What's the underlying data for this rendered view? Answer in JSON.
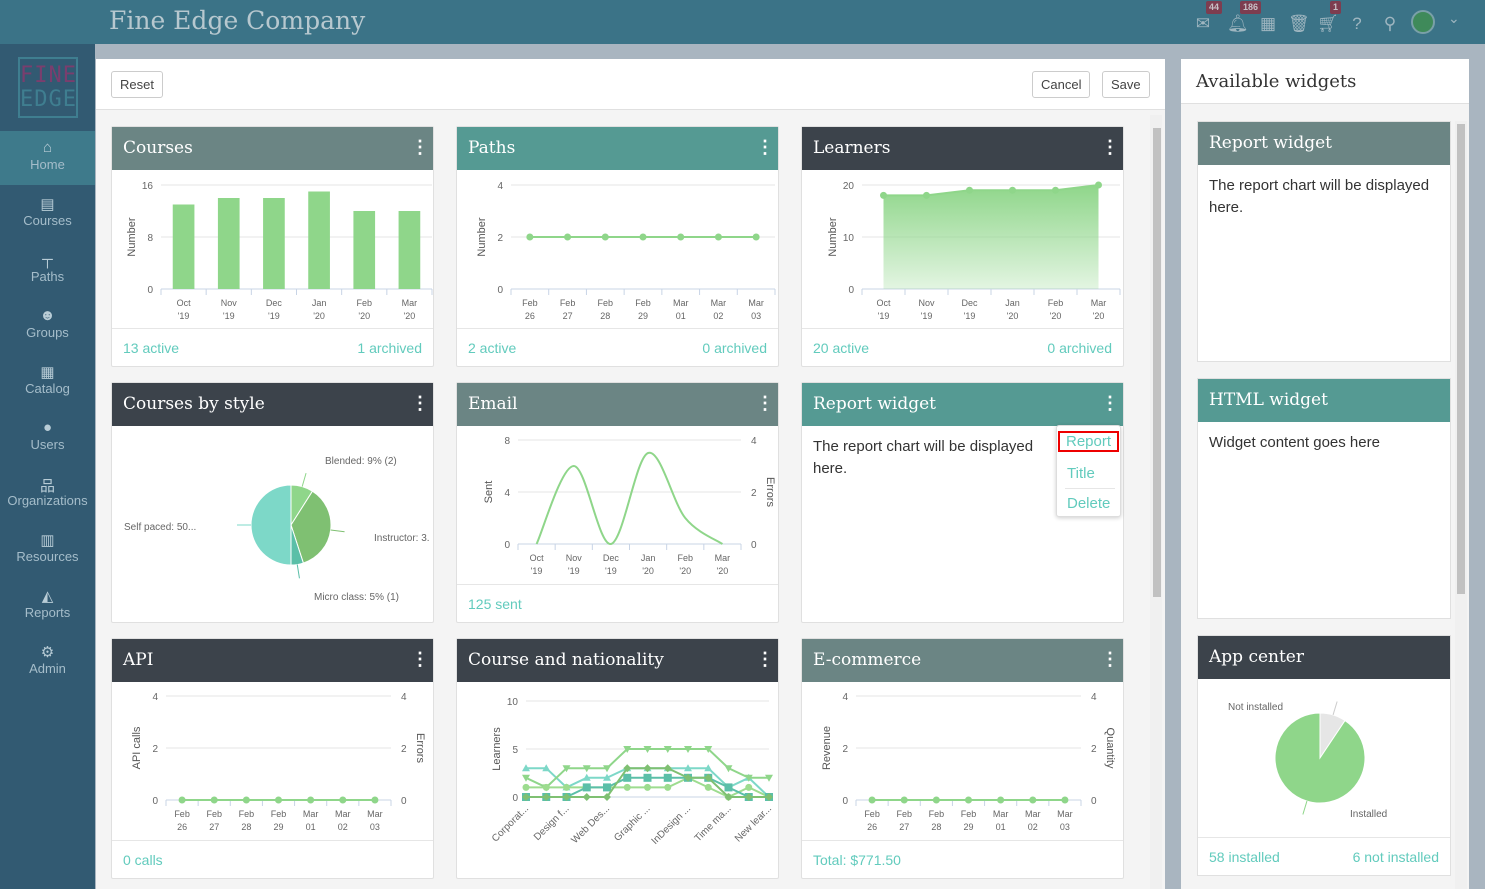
{
  "header": {
    "title": "Fine Edge Company",
    "icons": [
      {
        "name": "envelope-icon",
        "glyph": "✉",
        "badge": "44"
      },
      {
        "name": "bell-icon",
        "glyph": "🔔︎",
        "badge": "186"
      },
      {
        "name": "calendar-icon",
        "glyph": "▦",
        "badge": null
      },
      {
        "name": "trash-icon",
        "glyph": "🗑︎",
        "badge": null
      },
      {
        "name": "cart-icon",
        "glyph": "🛒︎",
        "badge": "1"
      },
      {
        "name": "help-icon",
        "glyph": "?",
        "badge": null
      },
      {
        "name": "search-icon",
        "glyph": "⚲",
        "badge": null
      }
    ]
  },
  "logo": {
    "line1": "FINE",
    "line2": "EDGE"
  },
  "sidebar": {
    "items": [
      {
        "label": "Home",
        "icon": "⌂",
        "active": true
      },
      {
        "label": "Courses",
        "icon": "▤"
      },
      {
        "label": "Paths",
        "icon": "┬"
      },
      {
        "label": "Groups",
        "icon": "☻"
      },
      {
        "label": "Catalog",
        "icon": "▦"
      },
      {
        "label": "Users",
        "icon": "●"
      },
      {
        "label": "Organizations",
        "icon": "品"
      },
      {
        "label": "Resources",
        "icon": "▥"
      },
      {
        "label": "Reports",
        "icon": "◭"
      },
      {
        "label": "Admin",
        "icon": "⚙"
      }
    ]
  },
  "toolbar": {
    "reset": "Reset",
    "cancel": "Cancel",
    "save": "Save"
  },
  "cards": [
    {
      "title": "Courses",
      "color": "#6b8584",
      "footer_left": "13 active",
      "footer_right": "1 archived"
    },
    {
      "title": "Paths",
      "color": "#559a93",
      "footer_left": "2 active",
      "footer_right": "0 archived"
    },
    {
      "title": "Learners",
      "color": "#3c434b",
      "footer_left": "20 active",
      "footer_right": "0 archived"
    },
    {
      "title": "Courses by style",
      "color": "#3c434b"
    },
    {
      "title": "Email",
      "color": "#6b8584",
      "footer_left": "125 sent"
    },
    {
      "title": "Report widget",
      "color": "#559a93",
      "text": "The report chart will be displayed here."
    },
    {
      "title": "API",
      "color": "#3c434b",
      "footer_left": "0 calls"
    },
    {
      "title": "Course and nationality",
      "color": "#3c434b"
    },
    {
      "title": "E-commerce",
      "color": "#6b8584",
      "footer_left": "Total: $771.50"
    }
  ],
  "popup_menu": {
    "items": [
      "Report",
      "Title",
      "Delete"
    ],
    "highlighted": "Report"
  },
  "available_widgets": {
    "title": "Available widgets",
    "widgets": [
      {
        "title": "Report widget",
        "color": "#6b8584",
        "text": "The report chart will be displayed here."
      },
      {
        "title": "HTML widget",
        "color": "#559a93",
        "text": "Widget content goes here"
      },
      {
        "title": "App center",
        "color": "#3c434b",
        "footer_left": "58 installed",
        "footer_right": "6 not installed"
      }
    ]
  },
  "chart_data": [
    {
      "id": "courses",
      "type": "bar",
      "ylabel": "Number",
      "yticks": [
        0,
        8,
        16
      ],
      "ylim": [
        0,
        16
      ],
      "categories": [
        "Oct '19",
        "Nov '19",
        "Dec '19",
        "Jan '20",
        "Feb '20",
        "Mar '20"
      ],
      "series": [
        {
          "values": [
            13,
            14,
            14,
            15,
            12,
            12
          ],
          "color": "#8fd68a"
        }
      ]
    },
    {
      "id": "paths",
      "type": "line",
      "ylabel": "Number",
      "yticks": [
        0,
        2,
        4
      ],
      "ylim": [
        0,
        4
      ],
      "categories": [
        "Feb 26",
        "Feb 27",
        "Feb 28",
        "Feb 29",
        "Mar 01",
        "Mar 02",
        "Mar 03"
      ],
      "series": [
        {
          "values": [
            2,
            2,
            2,
            2,
            2,
            2,
            2
          ],
          "color": "#8fd68a"
        }
      ]
    },
    {
      "id": "learners",
      "type": "area",
      "ylabel": "Number",
      "yticks": [
        0,
        10,
        20
      ],
      "ylim": [
        0,
        20
      ],
      "categories": [
        "Oct '19",
        "Nov '19",
        "Dec '19",
        "Jan '20",
        "Feb '20",
        "Mar '20"
      ],
      "series": [
        {
          "values": [
            18,
            18,
            19,
            19,
            19,
            20
          ],
          "color": "#8fd68a"
        }
      ]
    },
    {
      "id": "courses-by-style",
      "type": "pie",
      "slices": [
        {
          "label": "Blended: 9% (2)",
          "value": 9,
          "color": "#8fd68a"
        },
        {
          "label": "Instructor: 3.",
          "value": 36,
          "color": "#7fc072"
        },
        {
          "label": "Micro class: 5% (1)",
          "value": 5,
          "color": "#5bbfa8"
        },
        {
          "label": "Self paced: 50...",
          "value": 50,
          "color": "#7dd8c8"
        }
      ]
    },
    {
      "id": "email",
      "type": "spline",
      "ylabel": "Sent",
      "y2label": "Errors",
      "yticks": [
        0,
        4,
        8
      ],
      "y2ticks": [
        0,
        2,
        4
      ],
      "ylim": [
        0,
        8
      ],
      "categories": [
        "Oct '19",
        "Nov '19",
        "Dec '19",
        "Jan '20",
        "Feb '20",
        "Mar '20"
      ],
      "series": [
        {
          "values": [
            0,
            6,
            0,
            7,
            2,
            0
          ],
          "color": "#8fd68a"
        }
      ]
    },
    {
      "id": "api",
      "type": "line",
      "ylabel": "API calls",
      "y2label": "Errors",
      "yticks": [
        0,
        2,
        4
      ],
      "y2ticks": [
        0,
        2,
        4
      ],
      "ylim": [
        0,
        4
      ],
      "categories": [
        "Feb 26",
        "Feb 27",
        "Feb 28",
        "Feb 29",
        "Mar 01",
        "Mar 02",
        "Mar 03"
      ],
      "series": [
        {
          "values": [
            0,
            0,
            0,
            0,
            0,
            0,
            0
          ],
          "color": "#8fd68a"
        }
      ]
    },
    {
      "id": "course-nationality",
      "type": "line",
      "ylabel": "Learners",
      "yticks": [
        0,
        5,
        10
      ],
      "ylim": [
        0,
        10
      ],
      "tick_labels": [
        "Corporat...",
        "Design f...",
        "Web Des...",
        "Graphic ...",
        "InDesign ...",
        "Time ma...",
        "New lear..."
      ],
      "series": [
        {
          "values": [
            3,
            3,
            1,
            2,
            2,
            3,
            3,
            3,
            3,
            3,
            1,
            2,
            0
          ],
          "color": "#7dd8c8",
          "marker": "triangle-up"
        },
        {
          "values": [
            2,
            1,
            3,
            3,
            3,
            5,
            5,
            5,
            5,
            5,
            3,
            2,
            2
          ],
          "color": "#8fd68a",
          "marker": "triangle-down"
        },
        {
          "values": [
            1,
            1,
            1,
            1,
            1,
            1,
            1,
            1,
            2,
            1,
            0,
            1,
            0
          ],
          "color": "#9ddc8f",
          "marker": "circle"
        },
        {
          "values": [
            0,
            0,
            0,
            1,
            1,
            2,
            2,
            2,
            2,
            2,
            1,
            0,
            0
          ],
          "color": "#5bbfa8",
          "marker": "square"
        },
        {
          "values": [
            0,
            0,
            0,
            0,
            0,
            3,
            3,
            3,
            2,
            2,
            0,
            0,
            0
          ],
          "color": "#7fc072",
          "marker": "diamond"
        }
      ]
    },
    {
      "id": "ecommerce",
      "type": "line",
      "ylabel": "Revenue",
      "y2label": "Quantity",
      "yticks": [
        0,
        2,
        4
      ],
      "y2ticks": [
        0,
        2,
        4
      ],
      "ylim": [
        0,
        4
      ],
      "categories": [
        "Feb 26",
        "Feb 27",
        "Feb 28",
        "Feb 29",
        "Mar 01",
        "Mar 02",
        "Mar 03"
      ],
      "series": [
        {
          "values": [
            0,
            0,
            0,
            0,
            0,
            0,
            0
          ],
          "color": "#8fd68a"
        }
      ]
    },
    {
      "id": "app-center",
      "type": "pie",
      "slices": [
        {
          "label": "Not installed",
          "value": 6,
          "color": "#e6e6e6"
        },
        {
          "label": "Installed",
          "value": 58,
          "color": "#8fd68a"
        }
      ]
    }
  ]
}
